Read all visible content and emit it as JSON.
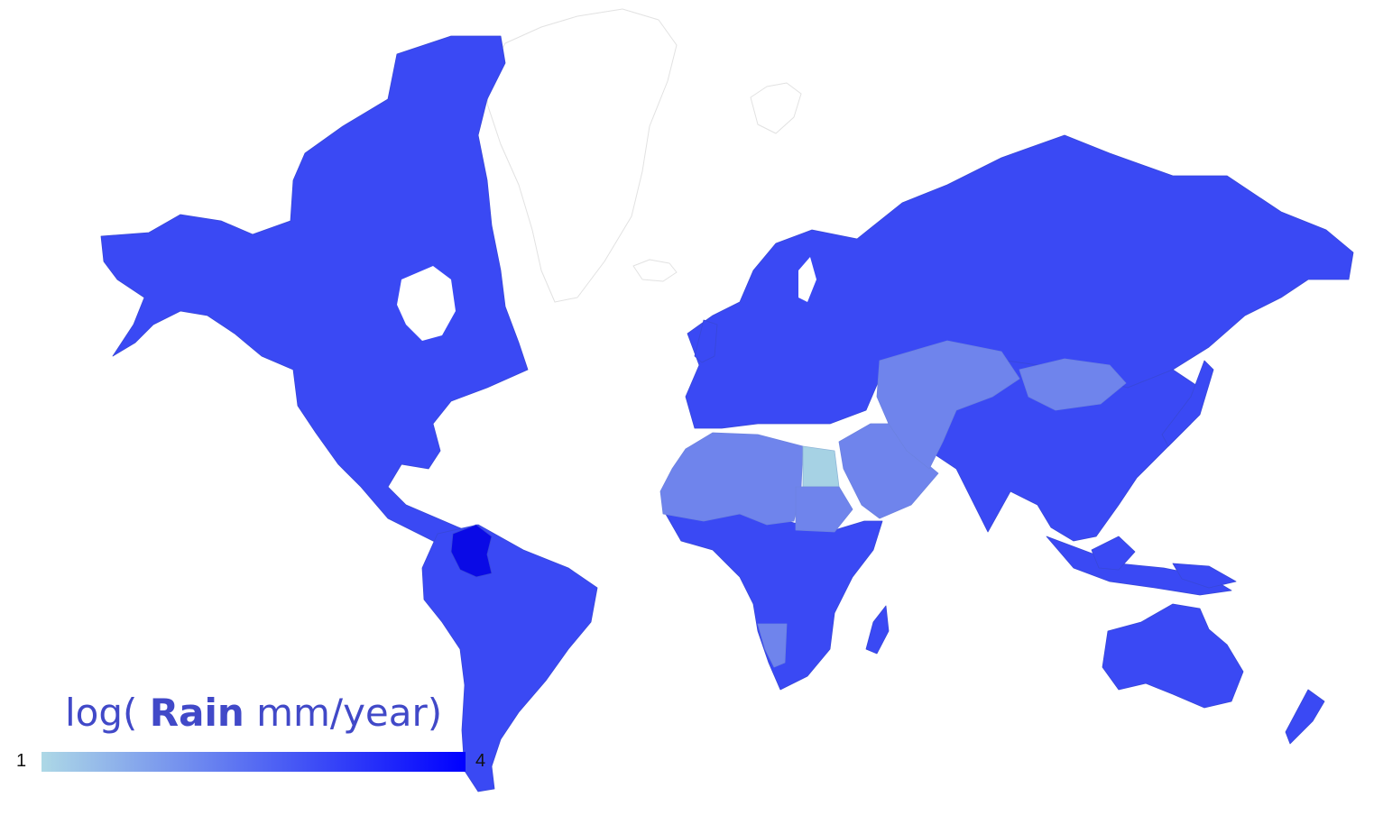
{
  "legend": {
    "title_prefix": "log( ",
    "title_bold": "Rain",
    "title_suffix": " mm/year)",
    "min_label": "1",
    "max_label": "4",
    "min_value": 1,
    "max_value": 4,
    "color_low": "#add8e6",
    "color_high": "#0000ff"
  },
  "colors": {
    "high_rain": "#3a49f4",
    "medium_rain": "#6f84ec",
    "low_rain": "#a6d2e4",
    "very_high_rain": "#0a0ae6",
    "no_data": "#ffffff",
    "no_data_stroke": "#e2e2e2"
  },
  "regions": [
    {
      "id": "north-america",
      "level": "high"
    },
    {
      "id": "south-america",
      "level": "high"
    },
    {
      "id": "colombia",
      "level": "very-high"
    },
    {
      "id": "europe-russia",
      "level": "high"
    },
    {
      "id": "north-africa",
      "level": "medium"
    },
    {
      "id": "egypt",
      "level": "low"
    },
    {
      "id": "sudan",
      "level": "medium"
    },
    {
      "id": "arabia",
      "level": "medium"
    },
    {
      "id": "central-asia",
      "level": "medium"
    },
    {
      "id": "mongolia",
      "level": "medium"
    },
    {
      "id": "namibia",
      "level": "medium"
    },
    {
      "id": "sub-saharan-africa",
      "level": "high"
    },
    {
      "id": "asia",
      "level": "high"
    },
    {
      "id": "australia",
      "level": "high"
    },
    {
      "id": "greenland",
      "level": "no-data"
    },
    {
      "id": "iceland",
      "level": "no-data"
    },
    {
      "id": "svalbard",
      "level": "no-data"
    }
  ]
}
